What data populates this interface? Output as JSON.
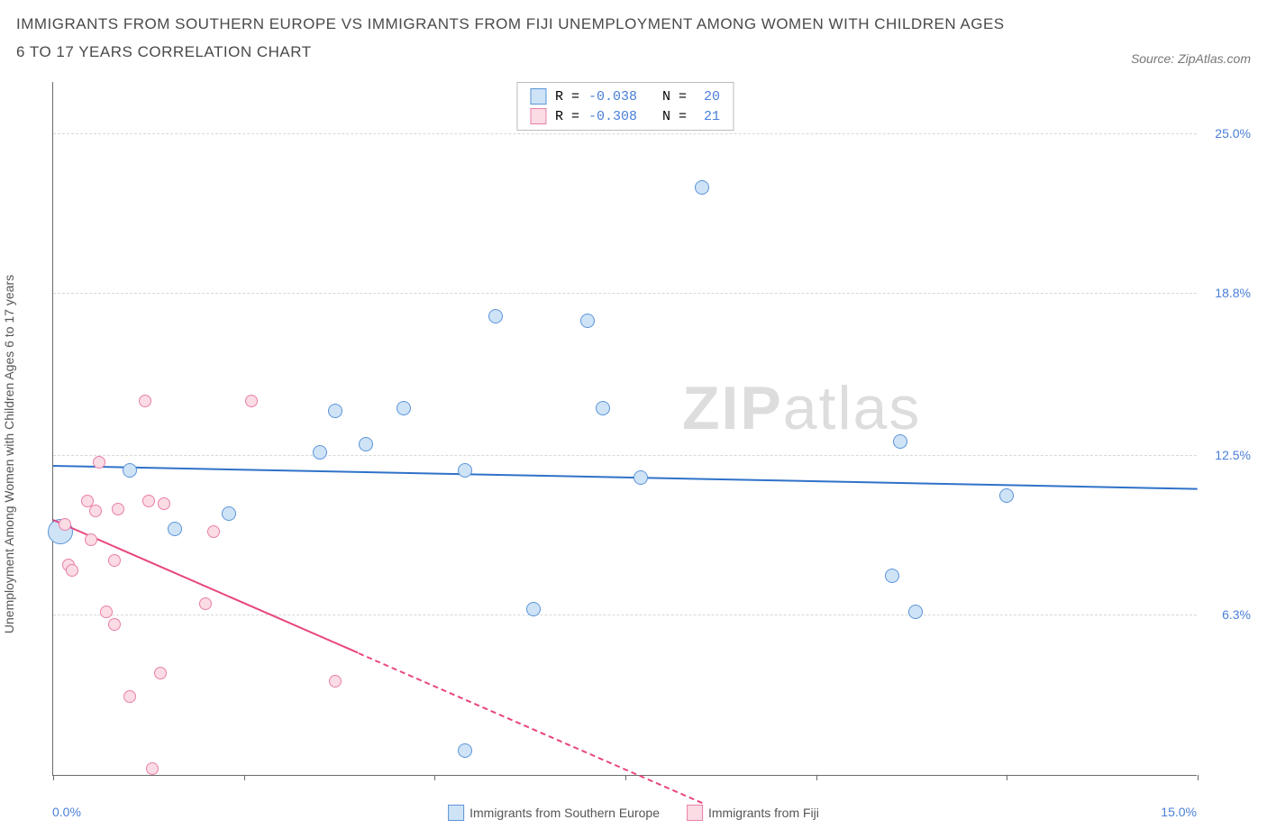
{
  "title": "IMMIGRANTS FROM SOUTHERN EUROPE VS IMMIGRANTS FROM FIJI UNEMPLOYMENT AMONG WOMEN WITH CHILDREN AGES 6 TO 17 YEARS CORRELATION CHART",
  "source_label": "Source: ZipAtlas.com",
  "y_axis_label": "Unemployment Among Women with Children Ages 6 to 17 years",
  "watermark": {
    "bold": "ZIP",
    "light": "atlas"
  },
  "chart": {
    "type": "scatter",
    "xlim": [
      0,
      15
    ],
    "ylim": [
      0,
      27
    ],
    "x_min_label": "0.0%",
    "x_max_label": "15.0%",
    "y_ticks": [
      6.3,
      12.5,
      18.8,
      25.0
    ],
    "y_tick_labels": [
      "6.3%",
      "12.5%",
      "18.8%",
      "25.0%"
    ],
    "x_tick_positions": [
      0,
      2.5,
      5,
      7.5,
      10,
      12.5,
      15
    ],
    "background_color": "#ffffff",
    "grid_color": "#d8d8d8",
    "axis_label_color": "#4a7fd8",
    "series": [
      {
        "name": "Immigrants from Southern Europe",
        "fill": "#cfe3f7",
        "stroke": "#5a94d8",
        "trend_color": "#2f72c9",
        "R": "-0.038",
        "N": "20",
        "trend": {
          "x1": 0,
          "y1": 12.1,
          "x2": 15,
          "y2": 11.2,
          "solid_until_x": 15
        },
        "points": [
          {
            "x": 0.1,
            "y": 9.5,
            "r": 14
          },
          {
            "x": 1.0,
            "y": 11.9,
            "r": 8
          },
          {
            "x": 1.6,
            "y": 9.6,
            "r": 8
          },
          {
            "x": 2.3,
            "y": 10.2,
            "r": 8
          },
          {
            "x": 3.5,
            "y": 12.6,
            "r": 8
          },
          {
            "x": 3.7,
            "y": 14.2,
            "r": 8
          },
          {
            "x": 4.1,
            "y": 12.9,
            "r": 8
          },
          {
            "x": 4.6,
            "y": 14.3,
            "r": 8
          },
          {
            "x": 5.4,
            "y": 11.9,
            "r": 8
          },
          {
            "x": 5.4,
            "y": 1.0,
            "r": 8
          },
          {
            "x": 5.8,
            "y": 17.9,
            "r": 8
          },
          {
            "x": 6.3,
            "y": 6.5,
            "r": 8
          },
          {
            "x": 7.0,
            "y": 17.7,
            "r": 8
          },
          {
            "x": 7.2,
            "y": 14.3,
            "r": 8
          },
          {
            "x": 7.7,
            "y": 11.6,
            "r": 8
          },
          {
            "x": 8.5,
            "y": 22.9,
            "r": 8
          },
          {
            "x": 11.0,
            "y": 7.8,
            "r": 8
          },
          {
            "x": 11.1,
            "y": 13.0,
            "r": 8
          },
          {
            "x": 11.3,
            "y": 6.4,
            "r": 8
          },
          {
            "x": 12.5,
            "y": 10.9,
            "r": 8
          }
        ]
      },
      {
        "name": "Immigrants from Fiji",
        "fill": "#fbdce5",
        "stroke": "#e97fa8",
        "trend_color": "#e8457f",
        "R": "-0.308",
        "N": "21",
        "trend": {
          "x1": 0,
          "y1": 10.0,
          "x2": 8.5,
          "y2": -1.0,
          "solid_until_x": 4.0
        },
        "points": [
          {
            "x": 0.15,
            "y": 9.8,
            "r": 7
          },
          {
            "x": 0.2,
            "y": 8.2,
            "r": 7
          },
          {
            "x": 0.25,
            "y": 8.0,
            "r": 7
          },
          {
            "x": 0.45,
            "y": 10.7,
            "r": 7
          },
          {
            "x": 0.5,
            "y": 9.2,
            "r": 7
          },
          {
            "x": 0.55,
            "y": 10.3,
            "r": 7
          },
          {
            "x": 0.6,
            "y": 12.2,
            "r": 7
          },
          {
            "x": 0.7,
            "y": 6.4,
            "r": 7
          },
          {
            "x": 0.8,
            "y": 5.9,
            "r": 7
          },
          {
            "x": 0.8,
            "y": 8.4,
            "r": 7
          },
          {
            "x": 0.85,
            "y": 10.4,
            "r": 7
          },
          {
            "x": 1.0,
            "y": 3.1,
            "r": 7
          },
          {
            "x": 1.2,
            "y": 14.6,
            "r": 7
          },
          {
            "x": 1.25,
            "y": 10.7,
            "r": 7
          },
          {
            "x": 1.3,
            "y": 0.3,
            "r": 7
          },
          {
            "x": 1.4,
            "y": 4.0,
            "r": 7
          },
          {
            "x": 1.45,
            "y": 10.6,
            "r": 7
          },
          {
            "x": 2.0,
            "y": 6.7,
            "r": 7
          },
          {
            "x": 2.1,
            "y": 9.5,
            "r": 7
          },
          {
            "x": 2.6,
            "y": 14.6,
            "r": 7
          },
          {
            "x": 3.7,
            "y": 3.7,
            "r": 7
          }
        ]
      }
    ]
  },
  "legend_bottom": [
    {
      "label": "Immigrants from Southern Europe",
      "fill": "#cfe3f7",
      "stroke": "#5a94d8"
    },
    {
      "label": "Immigrants from Fiji",
      "fill": "#fbdce5",
      "stroke": "#e97fa8"
    }
  ]
}
